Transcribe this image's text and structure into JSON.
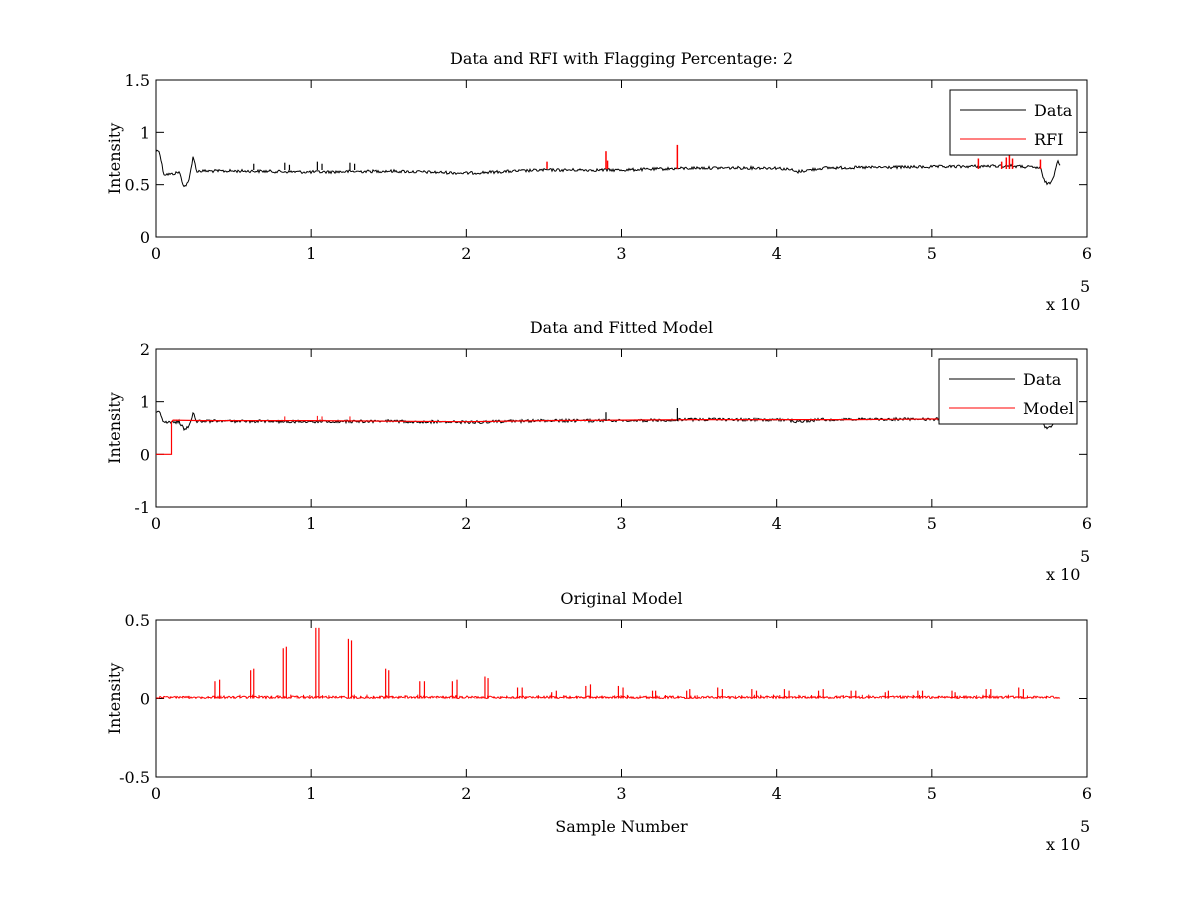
{
  "chart_data": [
    {
      "type": "line",
      "title": "Data and RFI with Flagging Percentage: 2",
      "xlabel": "",
      "ylabel": "Intensity",
      "xlim": [
        0,
        6
      ],
      "ylim": [
        0,
        1.5
      ],
      "xticks": [
        "0",
        "1",
        "2",
        "3",
        "4",
        "5",
        "6"
      ],
      "yticks": [
        "0",
        "0.5",
        "1",
        "1.5"
      ],
      "x_exponent_label": "x 10",
      "x_exponent_power": "5",
      "legend_position": "top-right",
      "legend": [
        {
          "name": "Data",
          "color": "#000000"
        },
        {
          "name": "RFI",
          "color": "#ff0000"
        }
      ],
      "series": [
        {
          "name": "Data",
          "color": "#000000",
          "x": [
            0,
            0.02,
            0.05,
            0.1,
            0.15,
            0.18,
            0.21,
            0.24,
            0.26,
            0.3,
            0.6,
            1.0,
            1.5,
            2.0,
            2.5,
            3.0,
            3.5,
            4.0,
            4.1,
            4.12,
            4.3,
            5.0,
            5.5,
            5.7,
            5.72,
            5.75,
            5.78,
            5.81,
            5.83
          ],
          "y": [
            0.82,
            0.83,
            0.6,
            0.6,
            0.62,
            0.48,
            0.52,
            0.78,
            0.63,
            0.63,
            0.63,
            0.62,
            0.63,
            0.61,
            0.64,
            0.64,
            0.66,
            0.66,
            0.64,
            0.62,
            0.66,
            0.67,
            0.68,
            0.66,
            0.55,
            0.5,
            0.55,
            0.74,
            0.68
          ]
        }
      ],
      "rfi_spikes": {
        "name": "RFI",
        "color": "#ff0000",
        "x": [
          2.52,
          2.9,
          2.91,
          3.36,
          5.3,
          5.45,
          5.48,
          5.5,
          5.52,
          5.7
        ],
        "y": [
          0.72,
          0.82,
          0.73,
          0.88,
          0.75,
          0.72,
          0.76,
          0.82,
          0.75,
          0.74
        ]
      },
      "black_spikes": {
        "x": [
          0.63,
          0.83,
          0.86,
          1.04,
          1.07,
          1.25,
          1.28
        ],
        "y": [
          0.7,
          0.71,
          0.69,
          0.72,
          0.7,
          0.71,
          0.7
        ]
      }
    },
    {
      "type": "line",
      "title": "Data and Fitted Model",
      "xlabel": "",
      "ylabel": "Intensity",
      "xlim": [
        0,
        6
      ],
      "ylim": [
        -1,
        2
      ],
      "xticks": [
        "0",
        "1",
        "2",
        "3",
        "4",
        "5",
        "6"
      ],
      "yticks": [
        "-1",
        "0",
        "1",
        "2"
      ],
      "x_exponent_label": "x 10",
      "x_exponent_power": "5",
      "legend_position": "top-right",
      "legend": [
        {
          "name": "Data",
          "color": "#000000"
        },
        {
          "name": "Model",
          "color": "#ff0000"
        }
      ],
      "series": [
        {
          "name": "Data",
          "color": "#000000",
          "x": [
            0,
            0.02,
            0.05,
            0.1,
            0.15,
            0.18,
            0.21,
            0.24,
            0.26,
            0.3,
            0.6,
            1.0,
            1.5,
            2.0,
            2.5,
            3.0,
            3.5,
            4.0,
            4.1,
            4.12,
            4.3,
            5.0,
            5.5,
            5.7,
            5.72,
            5.75,
            5.78,
            5.81,
            5.83
          ],
          "y": [
            0.82,
            0.83,
            0.6,
            0.6,
            0.62,
            0.48,
            0.52,
            0.78,
            0.63,
            0.63,
            0.63,
            0.62,
            0.63,
            0.61,
            0.64,
            0.64,
            0.66,
            0.66,
            0.64,
            0.62,
            0.66,
            0.67,
            0.68,
            0.66,
            0.55,
            0.5,
            0.55,
            0.74,
            0.68
          ]
        },
        {
          "name": "Model",
          "color": "#ff0000",
          "x": [
            0,
            0.1,
            0.1,
            0.11,
            0.3,
            1.0,
            1.5,
            2.0,
            2.5,
            3.0,
            3.5,
            4.0,
            4.5,
            5.0,
            5.5,
            5.83
          ],
          "y": [
            0,
            0,
            0.62,
            0.65,
            0.64,
            0.64,
            0.63,
            0.62,
            0.64,
            0.65,
            0.66,
            0.66,
            0.66,
            0.67,
            0.67,
            0.67
          ]
        }
      ],
      "black_spikes": {
        "x": [
          2.9,
          3.36
        ],
        "y": [
          0.8,
          0.88
        ]
      },
      "model_spikes": {
        "x": [
          0.83,
          1.04,
          1.07,
          1.25
        ],
        "y": [
          0.72,
          0.73,
          0.72,
          0.72
        ]
      }
    },
    {
      "type": "line",
      "title": "Original Model",
      "xlabel": "Sample Number",
      "ylabel": "Intensity",
      "xlim": [
        0,
        6
      ],
      "ylim": [
        -0.5,
        0.5
      ],
      "xticks": [
        "0",
        "1",
        "2",
        "3",
        "4",
        "5",
        "6"
      ],
      "yticks": [
        "-0.5",
        "0",
        "0.5"
      ],
      "x_exponent_label": "x 10",
      "x_exponent_power": "5",
      "series": [
        {
          "name": "Model",
          "color": "#ff0000",
          "spike_x": [
            0.38,
            0.41,
            0.61,
            0.63,
            0.82,
            0.84,
            1.03,
            1.05,
            1.24,
            1.26,
            1.48,
            1.5,
            1.7,
            1.73,
            1.91,
            1.94,
            2.12,
            2.14,
            2.33,
            2.36,
            2.55,
            2.58,
            2.77,
            2.8,
            2.98,
            3.01,
            3.2,
            3.22,
            3.42,
            3.44,
            3.62,
            3.65,
            3.84,
            3.87,
            4.05,
            4.08,
            4.27,
            4.3,
            4.48,
            4.51,
            4.7,
            4.72,
            4.91,
            4.94,
            5.13,
            5.15,
            5.35,
            5.38,
            5.56,
            5.59
          ],
          "spike_y": [
            0.11,
            0.12,
            0.18,
            0.19,
            0.32,
            0.33,
            0.45,
            0.45,
            0.38,
            0.37,
            0.19,
            0.18,
            0.11,
            0.11,
            0.11,
            0.12,
            0.14,
            0.13,
            0.07,
            0.07,
            0.04,
            0.05,
            0.08,
            0.09,
            0.08,
            0.07,
            0.05,
            0.05,
            0.05,
            0.06,
            0.07,
            0.06,
            0.06,
            0.05,
            0.06,
            0.05,
            0.05,
            0.06,
            0.05,
            0.05,
            0.04,
            0.05,
            0.05,
            0.05,
            0.05,
            0.04,
            0.06,
            0.06,
            0.07,
            0.06
          ],
          "x_end": 5.83
        }
      ]
    }
  ]
}
